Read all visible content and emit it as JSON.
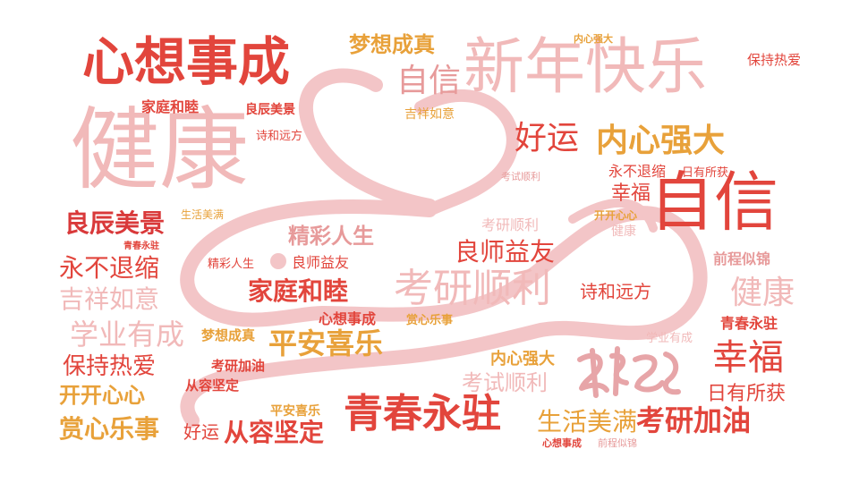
{
  "colors": {
    "rabbit": "#f3c5c7",
    "red": "#e2453c",
    "orange": "#f07a2a",
    "gold": "#e8a13a",
    "pink": "#e79a9a",
    "lightpink": "#f1b9b9",
    "crimson": "#d9393a",
    "stamp": "#e7a5a8"
  },
  "icons": {
    "rabbit": "rabbit-outline-icon",
    "stamp": "calligraphy-stamp-icon"
  },
  "words": [
    "心想事成",
    "新年快乐",
    "健康",
    "梦想成真",
    "自信",
    "内心强大",
    "保持热爱",
    "家庭和睦",
    "良辰美景",
    "吉祥如意",
    "好运",
    "内心强大",
    "诗和远方",
    "考试顺利",
    "永不退缩",
    "日有所获",
    "幸福",
    "自信",
    "开开心心",
    "生活美满",
    "良辰美景",
    "精彩人生",
    "考研顺利",
    "健康",
    "青春永驻",
    "良师益友",
    "前程似锦",
    "永不退缩",
    "精彩人生",
    "良师益友",
    "家庭和睦",
    "考研顺利",
    "诗和远方",
    "健康",
    "吉祥如意",
    "心想事成",
    "赏心乐事",
    "青春永驻",
    "学业有成",
    "梦想成真",
    "学业有成",
    "平安喜乐",
    "幸福",
    "保持热爱",
    "内心强大",
    "考研加油",
    "从容坚定",
    "考试顺利",
    "日有所获",
    "开开心心",
    "平安喜乐",
    "青春永驻",
    "赏心乐事",
    "好运",
    "从容坚定",
    "生活美满",
    "考研加油",
    "心想事成",
    "前程似锦"
  ]
}
